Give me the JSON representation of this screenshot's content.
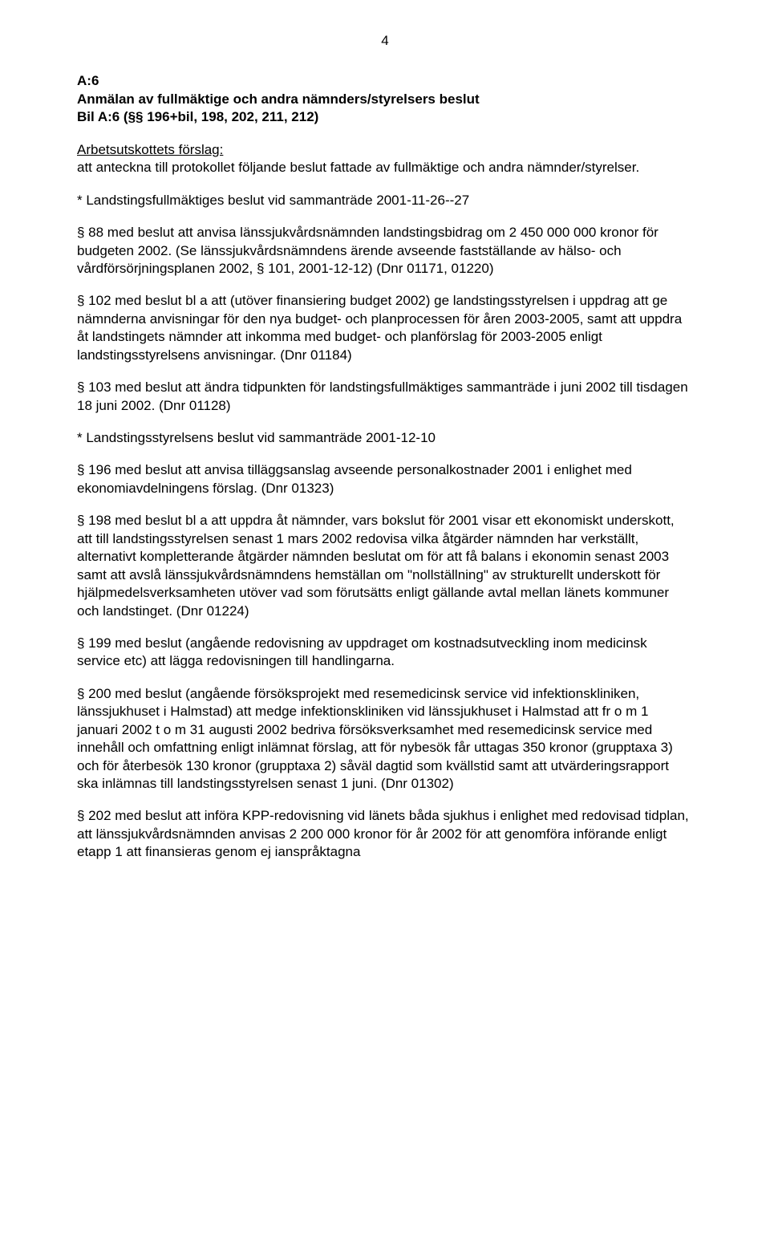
{
  "page_number": "4",
  "a6_label": "A:6",
  "title_line1": "Anmälan av fullmäktige och andra nämnders/styrelsers beslut",
  "title_line2": "Bil A:6 (§§ 196+bil, 198, 202, 211, 212)",
  "subhead": "Arbetsutskottets förslag:",
  "intro_after_subhead": "att anteckna till protokollet följande beslut fattade av fullmäktige och andra nämnder/styrelser.",
  "p_star1": "* Landstingsfullmäktiges beslut vid sammanträde 2001-11-26--27",
  "p88": "§ 88 med beslut att anvisa länssjukvårdsnämnden landstingsbidrag om 2 450 000 000 kronor för budgeten 2002. (Se länssjukvårdsnämndens ärende avseende fastställande av hälso- och vårdförsörjningsplanen 2002, § 101, 2001-12-12) (Dnr 01171, 01220)",
  "p102": "§ 102 med beslut bl a att (utöver finansiering budget 2002) ge landstingsstyrelsen i uppdrag att ge nämnderna anvisningar för den nya budget- och planprocessen för åren 2003-2005, samt att uppdra åt landstingets nämnder att inkomma med budget- och planförslag för 2003-2005 enligt landstingsstyrelsens anvisningar. (Dnr 01184)",
  "p103": "§ 103 med beslut att ändra tidpunkten för landstingsfullmäktiges sammanträde i juni 2002 till tisdagen 18 juni 2002. (Dnr 01128)",
  "p_star2": "* Landstingsstyrelsens beslut vid sammanträde 2001-12-10",
  "p196": "§ 196 med beslut att anvisa tilläggsanslag avseende personalkostnader 2001 i enlighet med ekonomiavdelningens förslag. (Dnr 01323)",
  "p198": "§ 198 med beslut bl a att uppdra åt nämnder, vars bokslut för 2001 visar ett ekonomiskt underskott, att till landstingsstyrelsen senast 1 mars 2002 redovisa vilka åtgärder nämnden har verkställt, alternativt kompletterande åtgärder nämnden beslutat om för att få balans i ekonomin senast 2003 samt att avslå länssjukvårdsnämndens hemställan om \"nollställning\" av strukturellt underskott för hjälpmedelsverksamheten utöver vad som förutsätts enligt gällande avtal mellan länets kommuner och landstinget. (Dnr 01224)",
  "p199": "§ 199 med beslut (angående redovisning av uppdraget om kostnadsutveckling inom medicinsk service etc) att lägga redovisningen till handlingarna.",
  "p200": "§ 200 med beslut (angående försöksprojekt med resemedicinsk service vid infektionskliniken, länssjukhuset i Halmstad) att medge infektionskliniken vid länssjukhuset i Halmstad att fr o m 1 januari 2002 t o m 31 augusti 2002 bedriva försöksverksamhet med resemedicinsk service med innehåll och omfattning enligt inlämnat förslag, att för nybesök får uttagas 350 kronor (grupptaxa 3) och för återbesök 130 kronor (grupptaxa 2) såväl dagtid som kvällstid samt att utvärderingsrapport ska inlämnas till landstingsstyrelsen senast 1 juni. (Dnr 01302)",
  "p202": "§ 202 med beslut att införa KPP-redovisning vid länets båda sjukhus i enlighet med redovisad tidplan, att länssjukvårdsnämnden anvisas 2 200 000 kronor för år 2002 för att genomföra införande enligt etapp 1 att finansieras genom ej ianspråktagna"
}
